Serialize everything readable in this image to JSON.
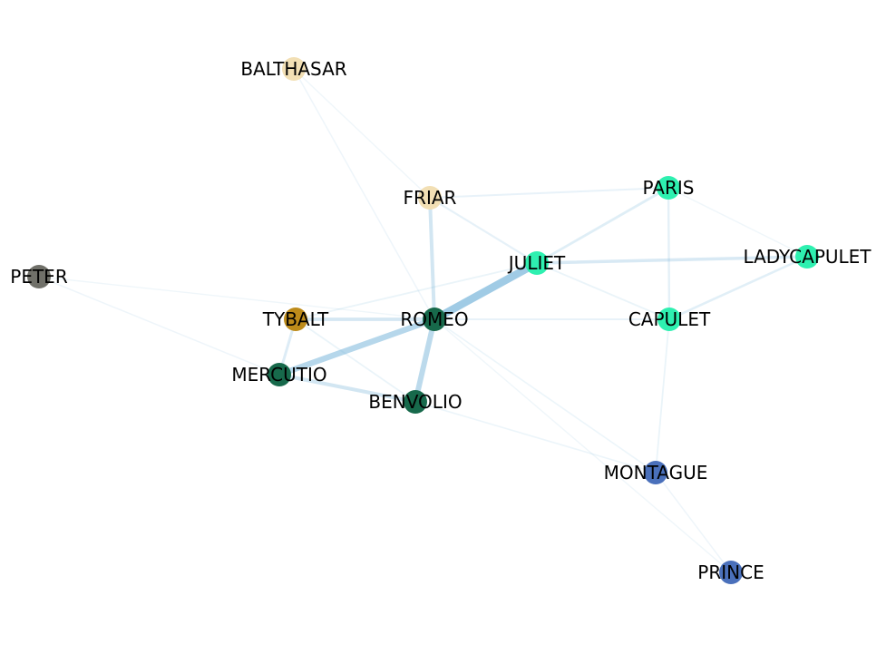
{
  "graph": {
    "nodes": [
      {
        "id": "romeo",
        "label": "ROMEO",
        "color": "#17694b"
      },
      {
        "id": "juliet",
        "label": "JULIET",
        "color": "#2ef0b0"
      },
      {
        "id": "friar",
        "label": "FRIAR",
        "color": "#f2dfb4"
      },
      {
        "id": "balthasar",
        "label": "BALTHASAR",
        "color": "#f2dfb4"
      },
      {
        "id": "paris",
        "label": "PARIS",
        "color": "#2ef0b0"
      },
      {
        "id": "ladycapulet",
        "label": "LADYCAPULET",
        "color": "#2ef0b0"
      },
      {
        "id": "capulet",
        "label": "CAPULET",
        "color": "#2ef0b0"
      },
      {
        "id": "peter",
        "label": "PETER",
        "color": "#707069"
      },
      {
        "id": "tybalt",
        "label": "TYBALT",
        "color": "#bd8b1a"
      },
      {
        "id": "mercutio",
        "label": "MERCUTIO",
        "color": "#17694b"
      },
      {
        "id": "benvolio",
        "label": "BENVOLIO",
        "color": "#17694b"
      },
      {
        "id": "montague",
        "label": "MONTAGUE",
        "color": "#4a70bb"
      },
      {
        "id": "prince",
        "label": "PRINCE",
        "color": "#4a70bb"
      }
    ],
    "edges": [
      {
        "source": "romeo",
        "target": "juliet",
        "weight": 0.75
      },
      {
        "source": "romeo",
        "target": "mercutio",
        "weight": 0.55
      },
      {
        "source": "romeo",
        "target": "benvolio",
        "weight": 0.5
      },
      {
        "source": "romeo",
        "target": "friar",
        "weight": 0.3
      },
      {
        "source": "romeo",
        "target": "tybalt",
        "weight": 0.28
      },
      {
        "source": "mercutio",
        "target": "benvolio",
        "weight": 0.3
      },
      {
        "source": "mercutio",
        "target": "tybalt",
        "weight": 0.2
      },
      {
        "source": "juliet",
        "target": "ladycapulet",
        "weight": 0.25
      },
      {
        "source": "juliet",
        "target": "paris",
        "weight": 0.18
      },
      {
        "source": "capulet",
        "target": "ladycapulet",
        "weight": 0.16
      },
      {
        "source": "capulet",
        "target": "paris",
        "weight": 0.14
      },
      {
        "source": "friar",
        "target": "juliet",
        "weight": 0.12
      },
      {
        "source": "friar",
        "target": "paris",
        "weight": 0.1
      },
      {
        "source": "romeo",
        "target": "capulet",
        "weight": 0.1
      },
      {
        "source": "juliet",
        "target": "capulet",
        "weight": 0.08
      },
      {
        "source": "tybalt",
        "target": "juliet",
        "weight": 0.08
      },
      {
        "source": "tybalt",
        "target": "benvolio",
        "weight": 0.08
      },
      {
        "source": "capulet",
        "target": "montague",
        "weight": 0.08
      },
      {
        "source": "benvolio",
        "target": "montague",
        "weight": 0.06
      },
      {
        "source": "romeo",
        "target": "montague",
        "weight": 0.06
      },
      {
        "source": "montague",
        "target": "prince",
        "weight": 0.05
      },
      {
        "source": "romeo",
        "target": "prince",
        "weight": 0.04
      },
      {
        "source": "balthasar",
        "target": "romeo",
        "weight": 0.05
      },
      {
        "source": "balthasar",
        "target": "friar",
        "weight": 0.04
      },
      {
        "source": "peter",
        "target": "mercutio",
        "weight": 0.05
      },
      {
        "source": "peter",
        "target": "romeo",
        "weight": 0.04
      },
      {
        "source": "paris",
        "target": "ladycapulet",
        "weight": 0.04
      }
    ]
  }
}
